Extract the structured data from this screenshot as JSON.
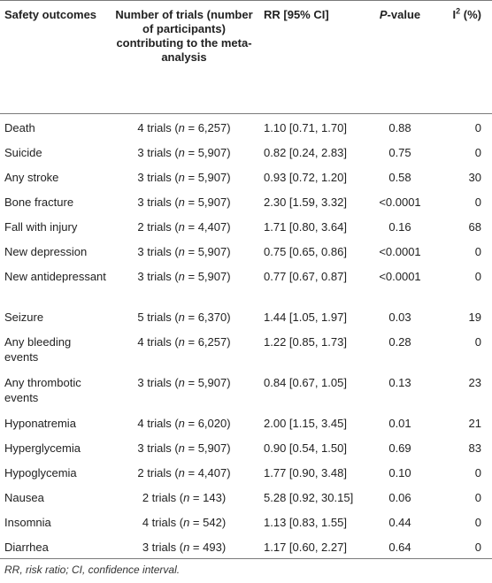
{
  "header": {
    "col0": "Safety outcomes",
    "col1": "Number of trials (number of participants) contributing to the meta-analysis",
    "col2": "RR [95% CI]",
    "col3_ital": "P",
    "col3_rest": "-value",
    "col4_main": "I",
    "col4_sup": "2",
    "col4_rest": " (%)"
  },
  "rows": [
    {
      "outcome": "Death",
      "trials_pre": "4 trials (",
      "n_label": "n",
      "trials_post": " = 6,257)",
      "rr": "1.10 [0.71, 1.70]",
      "p": "0.88",
      "i2": "0"
    },
    {
      "outcome": "Suicide",
      "trials_pre": "3 trials (",
      "n_label": "n",
      "trials_post": " = 5,907)",
      "rr": "0.82 [0.24, 2.83]",
      "p": "0.75",
      "i2": "0"
    },
    {
      "outcome": "Any stroke",
      "trials_pre": "3 trials (",
      "n_label": "n",
      "trials_post": " = 5,907)",
      "rr": "0.93 [0.72, 1.20]",
      "p": "0.58",
      "i2": "30"
    },
    {
      "outcome": "Bone fracture",
      "trials_pre": "3 trials (",
      "n_label": "n",
      "trials_post": " = 5,907)",
      "rr": "2.30 [1.59, 3.32]",
      "p": "<0.0001",
      "i2": "0"
    },
    {
      "outcome": "Fall with injury",
      "trials_pre": "2 trials (",
      "n_label": "n",
      "trials_post": " = 4,407)",
      "rr": "1.71 [0.80, 3.64]",
      "p": "0.16",
      "i2": "68"
    },
    {
      "outcome": "New depression",
      "trials_pre": "3 trials (",
      "n_label": "n",
      "trials_post": " = 5,907)",
      "rr": "0.75 [0.65, 0.86]",
      "p": "<0.0001",
      "i2": "0"
    },
    {
      "outcome": "New antidepressant",
      "trials_pre": "3 trials (",
      "n_label": "n",
      "trials_post": " = 5,907)",
      "rr": "0.77 [0.67, 0.87]",
      "p": "<0.0001",
      "i2": "0"
    },
    {
      "outcome": "Seizure",
      "trials_pre": "5 trials (",
      "n_label": "n",
      "trials_post": " = 6,370)",
      "rr": "1.44 [1.05, 1.97]",
      "p": "0.03",
      "i2": "19"
    },
    {
      "outcome": "Any bleeding events",
      "trials_pre": "4 trials (",
      "n_label": "n",
      "trials_post": " = 6,257)",
      "rr": "1.22 [0.85, 1.73]",
      "p": "0.28",
      "i2": "0"
    },
    {
      "outcome": "Any thrombotic events",
      "trials_pre": "3 trials (",
      "n_label": "n",
      "trials_post": " = 5,907)",
      "rr": "0.84 [0.67, 1.05]",
      "p": "0.13",
      "i2": "23"
    },
    {
      "outcome": "Hyponatremia",
      "trials_pre": "4 trials (",
      "n_label": "n",
      "trials_post": " = 6,020)",
      "rr": "2.00 [1.15, 3.45]",
      "p": "0.01",
      "i2": "21"
    },
    {
      "outcome": "Hyperglycemia",
      "trials_pre": "3 trials (",
      "n_label": "n",
      "trials_post": " = 5,907)",
      "rr": "0.90 [0.54, 1.50]",
      "p": "0.69",
      "i2": "83"
    },
    {
      "outcome": "Hypoglycemia",
      "trials_pre": "2 trials (",
      "n_label": "n",
      "trials_post": " = 4,407)",
      "rr": "1.77 [0.90, 3.48]",
      "p": "0.10",
      "i2": "0"
    },
    {
      "outcome": "Nausea",
      "trials_pre": "2 trials (",
      "n_label": "n",
      "trials_post": " = 143)",
      "rr": "5.28 [0.92, 30.15]",
      "p": "0.06",
      "i2": "0"
    },
    {
      "outcome": "Insomnia",
      "trials_pre": "4 trials (",
      "n_label": "n",
      "trials_post": " = 542)",
      "rr": "1.13 [0.83, 1.55]",
      "p": "0.44",
      "i2": "0"
    },
    {
      "outcome": "Diarrhea",
      "trials_pre": "3 trials (",
      "n_label": "n",
      "trials_post": " = 493)",
      "rr": "1.17 [0.60, 2.27]",
      "p": "0.64",
      "i2": "0"
    }
  ],
  "footnote": "RR, risk ratio; CI, confidence interval."
}
